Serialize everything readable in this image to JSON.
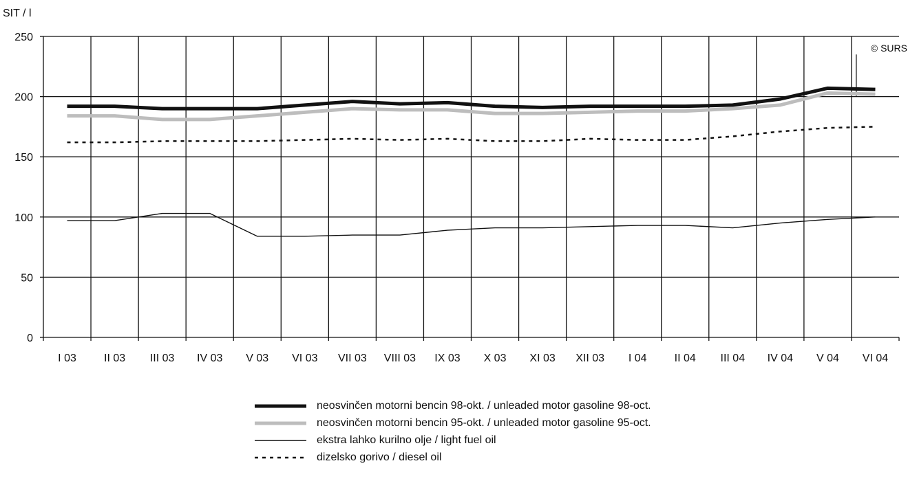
{
  "chart_data": {
    "type": "line",
    "ylabel": "SIT / l",
    "copyright": "© SURS",
    "ylim": [
      0,
      250
    ],
    "yticks": [
      0,
      50,
      100,
      150,
      200,
      250
    ],
    "categories": [
      "I 03",
      "II 03",
      "III 03",
      "IV 03",
      "V 03",
      "VI 03",
      "VII 03",
      "VIII 03",
      "IX 03",
      "X 03",
      "XI 03",
      "XII 03",
      "I 04",
      "II 04",
      "III 04",
      "IV 04",
      "V 04",
      "VI 04"
    ],
    "series": [
      {
        "name": "neosvinčen motorni bencin 98-okt. / unleaded motor gasoline 98-oct.",
        "color": "#111111",
        "style": "thick",
        "values": [
          192,
          192,
          190,
          190,
          190,
          193,
          196,
          194,
          195,
          192,
          191,
          192,
          192,
          192,
          193,
          198,
          207,
          206
        ]
      },
      {
        "name": "neosvinčen motorni bencin 95-okt. / unleaded motor gasoline 95-oct.",
        "color": "#bdbdbd",
        "style": "thick",
        "values": [
          184,
          184,
          181,
          181,
          184,
          187,
          190,
          189,
          189,
          186,
          186,
          187,
          188,
          188,
          190,
          193,
          203,
          202
        ]
      },
      {
        "name": "ekstra lahko kurilno olje / light fuel oil",
        "color": "#111111",
        "style": "thin",
        "values": [
          97,
          97,
          103,
          103,
          84,
          84,
          85,
          85,
          89,
          91,
          91,
          92,
          93,
          93,
          91,
          95,
          98,
          100
        ]
      },
      {
        "name": "dizelsko gorivo / diesel oil",
        "color": "#111111",
        "style": "dotted",
        "values": [
          162,
          162,
          163,
          163,
          163,
          164,
          165,
          164,
          165,
          163,
          163,
          165,
          164,
          164,
          167,
          171,
          174,
          175
        ]
      }
    ]
  }
}
